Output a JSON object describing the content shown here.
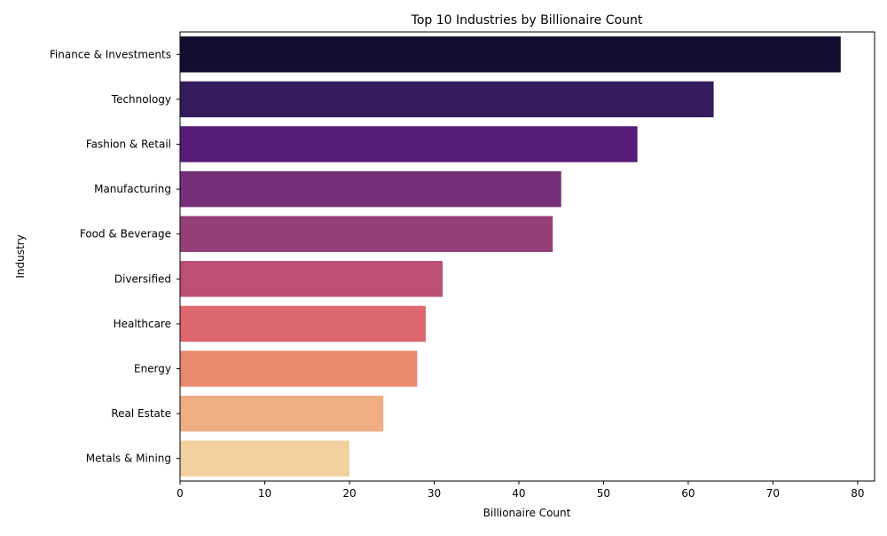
{
  "chart_data": {
    "type": "bar",
    "orientation": "horizontal",
    "title": "Top 10 Industries by Billionaire Count",
    "xlabel": "Billionaire Count",
    "ylabel": "Industry",
    "categories": [
      "Finance & Investments",
      "Technology",
      "Fashion & Retail",
      "Manufacturing",
      "Food & Beverage",
      "Diversified",
      "Healthcare",
      "Energy",
      "Real Estate",
      "Metals & Mining"
    ],
    "values": [
      78,
      63,
      54,
      45,
      44,
      31,
      29,
      28,
      24,
      20
    ],
    "colors": [
      "#120e32",
      "#331b5c",
      "#561c77",
      "#752f78",
      "#943f77",
      "#bb5073",
      "#dc676f",
      "#e88a6e",
      "#eeae82",
      "#f2d19e"
    ],
    "xlim": [
      0,
      82
    ],
    "xticks": [
      0,
      10,
      20,
      30,
      40,
      50,
      60,
      70,
      80
    ],
    "grid": false,
    "legend": "none"
  }
}
